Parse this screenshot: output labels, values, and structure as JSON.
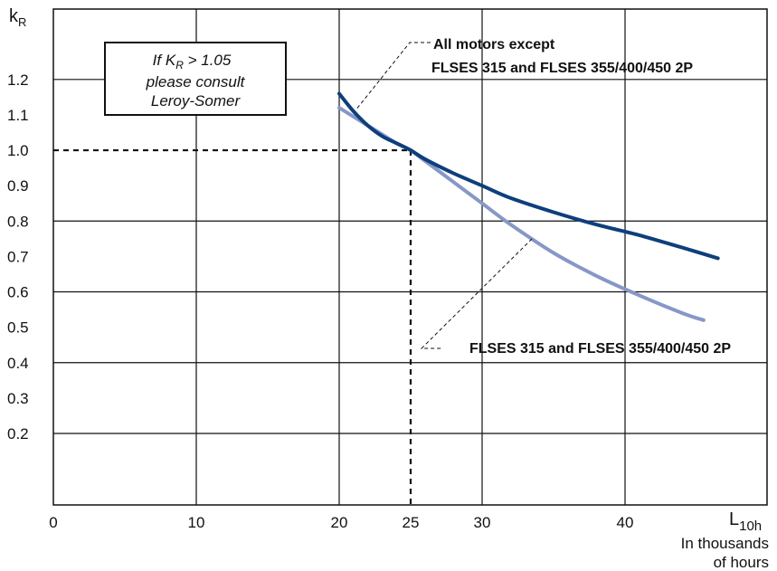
{
  "chart_data": {
    "type": "line",
    "xlabel": "L",
    "xlabel_sub": "10h",
    "xlabel_units": [
      "In thousands",
      "of hours"
    ],
    "ylabel": "k",
    "ylabel_sub": "R",
    "xlim": [
      0,
      48
    ],
    "x_ticks": [
      0,
      10,
      20,
      25,
      30,
      40
    ],
    "x_tick_labels": [
      "0",
      "10",
      "20",
      "25",
      "30",
      "40"
    ],
    "y_ticks": [
      0.2,
      0.3,
      0.4,
      0.5,
      0.6,
      0.7,
      0.8,
      0.9,
      1.0,
      1.1,
      1.2
    ],
    "y_tick_labels": [
      "0.2",
      "0.3",
      "0.4",
      "0.5",
      "0.6",
      "0.7",
      "0.8",
      "0.9",
      "1.0",
      "1.1",
      "1.2"
    ],
    "grid": true,
    "series": [
      {
        "name": "All motors except FLSES 315 and FLSES 355/400/450 2P",
        "label_lines": [
          "All motors except",
          "FLSES 315 and FLSES 355/400/450 2P"
        ],
        "color": "#0d3f7c",
        "x": [
          20,
          21,
          22,
          23,
          24,
          25,
          26,
          28,
          30,
          32,
          35,
          38,
          41,
          44,
          46.5
        ],
        "y": [
          1.16,
          1.11,
          1.07,
          1.04,
          1.02,
          1.0,
          0.975,
          0.935,
          0.9,
          0.865,
          0.825,
          0.79,
          0.76,
          0.725,
          0.695
        ]
      },
      {
        "name": "FLSES 315 and FLSES 355/400/450 2P",
        "label_lines": [
          "FLSES 315 and FLSES 355/400/450 2P"
        ],
        "color": "#8797c7",
        "x": [
          20,
          21,
          22,
          23,
          24,
          25,
          26,
          28,
          30,
          32,
          35,
          38,
          41,
          44,
          45.5
        ],
        "y": [
          1.12,
          1.095,
          1.07,
          1.045,
          1.02,
          1.0,
          0.97,
          0.91,
          0.85,
          0.79,
          0.71,
          0.645,
          0.59,
          0.54,
          0.52
        ]
      }
    ],
    "reference": {
      "x": 25,
      "y": 1.0
    },
    "note_lines": [
      "If K",
      "R",
      " > 1.05",
      "please consult",
      "Leroy-Somer"
    ]
  }
}
